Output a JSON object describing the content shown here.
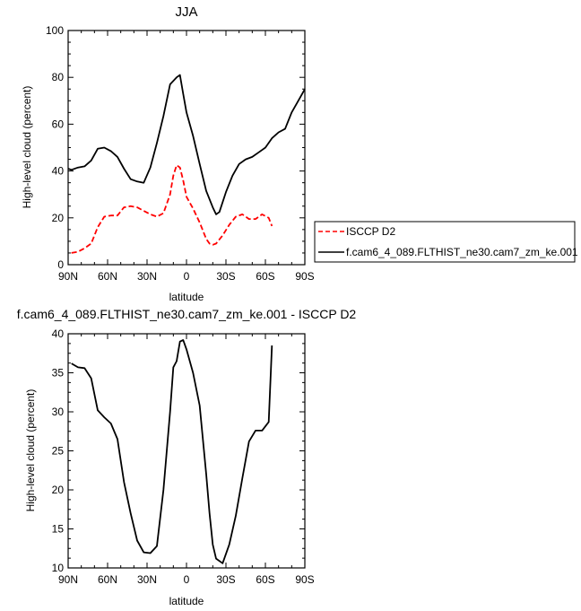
{
  "chart_data": [
    {
      "type": "line",
      "title": "JJA",
      "xlabel": "latitude",
      "ylabel": "High-level cloud (percent)",
      "xlim": [
        90,
        -90
      ],
      "ylim": [
        0,
        100
      ],
      "x_ticks": [
        90,
        60,
        30,
        0,
        -30,
        -60,
        -90
      ],
      "x_tick_labels": [
        "90N",
        "60N",
        "30N",
        "0",
        "30S",
        "60S",
        "90S"
      ],
      "y_ticks": [
        0,
        20,
        40,
        60,
        80,
        100
      ],
      "y_tick_labels": [
        "0",
        "20",
        "40",
        "60",
        "80",
        "100"
      ],
      "legend_position": "right",
      "series": [
        {
          "name": "ISCCP D2",
          "color": "#ff0000",
          "style": "dashed",
          "x": [
            87.5,
            82.5,
            77.5,
            72.5,
            67.5,
            62.5,
            57.5,
            52.5,
            47.5,
            42.5,
            37.5,
            32.5,
            27.5,
            22.5,
            17.5,
            12.5,
            10,
            7.5,
            5,
            2.5,
            0,
            -5,
            -10,
            -15,
            -17.5,
            -20,
            -22.5,
            -27.5,
            -32.5,
            -37.5,
            -42.5,
            -47.5,
            -52.5,
            -57.5,
            -62.5,
            -65
          ],
          "y": [
            5,
            5.5,
            7,
            9,
            16,
            20.5,
            21,
            21,
            24.5,
            25,
            24.5,
            23,
            21.5,
            20.5,
            22,
            30,
            38,
            42.5,
            41.5,
            36,
            29,
            24,
            18,
            11,
            9,
            8.5,
            9,
            12.5,
            17,
            20.5,
            21.5,
            19.5,
            19.5,
            21.5,
            20,
            16.5
          ]
        },
        {
          "name": "f.cam6_4_089.FLTHIST_ne30.cam7_zm_ke.001",
          "color": "#000000",
          "style": "solid",
          "x": [
            90,
            87.5,
            82.5,
            77.5,
            72.5,
            67.5,
            62.5,
            57.5,
            52.5,
            47.5,
            42.5,
            37.5,
            32.5,
            27.5,
            22.5,
            17.5,
            12.5,
            7.5,
            5,
            2.5,
            0,
            -5,
            -10,
            -15,
            -20,
            -22.5,
            -25,
            -30,
            -35,
            -40,
            -45,
            -50,
            -55,
            -60,
            -65,
            -70,
            -75,
            -80,
            -85,
            -90
          ],
          "y": [
            41,
            40.5,
            41.5,
            42,
            44.5,
            49.5,
            50,
            48.5,
            46,
            41,
            36.5,
            35.5,
            35,
            41.5,
            52,
            63.5,
            77,
            80,
            81,
            73,
            65,
            55,
            43,
            31.5,
            24.5,
            21.5,
            22.5,
            31,
            38,
            43,
            45,
            46,
            48,
            50,
            54,
            56.5,
            58,
            65,
            70,
            75
          ]
        }
      ]
    },
    {
      "type": "line",
      "title": "f.cam6_4_089.FLTHIST_ne30.cam7_zm_ke.001 - ISCCP D2",
      "xlabel": "latitude",
      "ylabel": "High-level cloud (percent)",
      "xlim": [
        90,
        -90
      ],
      "ylim": [
        10,
        40
      ],
      "x_ticks": [
        90,
        60,
        30,
        0,
        -30,
        -60,
        -90
      ],
      "x_tick_labels": [
        "90N",
        "60N",
        "30N",
        "0",
        "30S",
        "60S",
        "90S"
      ],
      "y_ticks": [
        10,
        15,
        20,
        25,
        30,
        35,
        40
      ],
      "y_tick_labels": [
        "10",
        "15",
        "20",
        "25",
        "30",
        "35",
        "40"
      ],
      "series": [
        {
          "color": "#000000",
          "style": "solid",
          "x": [
            87.5,
            82.5,
            77.5,
            72.5,
            67.5,
            62.5,
            57.5,
            52.5,
            47.5,
            42.5,
            37.5,
            32.5,
            27.5,
            22.5,
            17.5,
            12.5,
            10,
            7.5,
            5,
            2.5,
            0,
            -5,
            -10,
            -15,
            -17.5,
            -20,
            -22.5,
            -27.5,
            -32.5,
            -37.5,
            -42.5,
            -47.5,
            -52.5,
            -57.5,
            -62.5,
            -65
          ],
          "y": [
            36.2,
            35.7,
            35.6,
            34.3,
            30.2,
            29.3,
            28.5,
            26.5,
            21,
            17,
            13.5,
            12,
            11.9,
            12.8,
            20,
            30,
            35.7,
            36.5,
            39,
            39.2,
            38,
            35,
            30.8,
            22,
            17,
            13,
            11.2,
            10.6,
            13,
            16.7,
            21.5,
            26.2,
            27.6,
            27.6,
            28.7,
            38.5
          ]
        }
      ]
    }
  ]
}
